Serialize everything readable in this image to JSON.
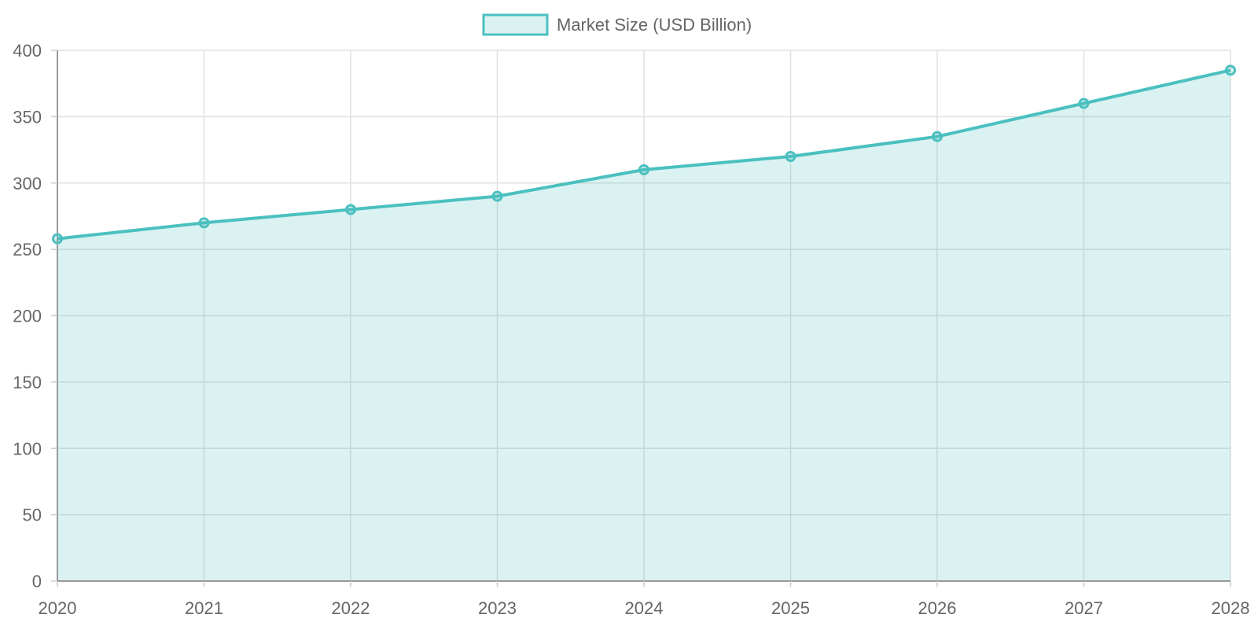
{
  "chart_data": {
    "type": "area",
    "x": [
      "2020",
      "2021",
      "2022",
      "2023",
      "2024",
      "2025",
      "2026",
      "2027",
      "2028"
    ],
    "series": [
      {
        "name": "Market Size (USD Billion)",
        "values": [
          258,
          270,
          280,
          290,
          310,
          320,
          335,
          360,
          385
        ],
        "color": "#4bc0c0",
        "fill": "rgba(75,192,192,0.2)"
      }
    ],
    "title": "",
    "xlabel": "",
    "ylabel": "",
    "ylim": [
      0,
      400
    ],
    "yticks": [
      0,
      50,
      100,
      150,
      200,
      250,
      300,
      350,
      400
    ],
    "grid": true,
    "legend_position": "top-center"
  }
}
